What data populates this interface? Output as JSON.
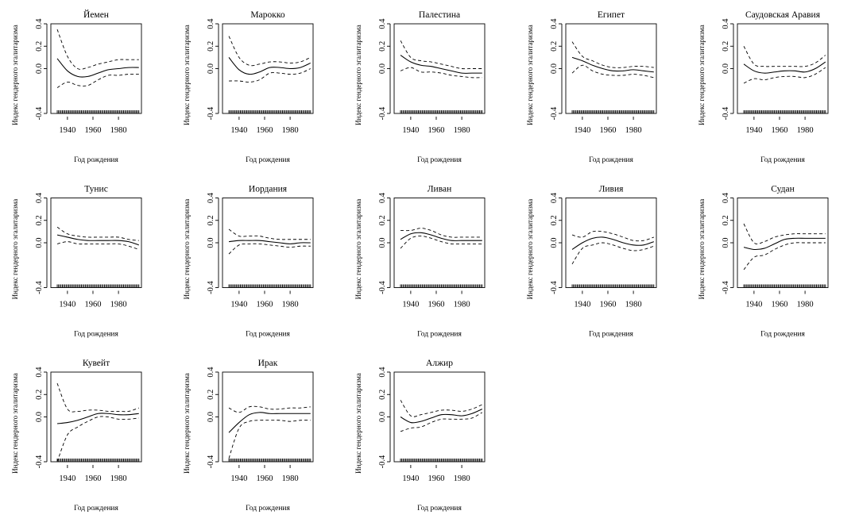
{
  "chart_data": [
    {
      "type": "line",
      "title": "Йемен",
      "xlabel": "Год рождения",
      "ylabel": "Индекс гендерного эгалитаризма",
      "xlim": [
        1927,
        1998
      ],
      "ylim": [
        -0.4,
        0.4
      ],
      "xticks": [
        1940,
        1960,
        1980
      ],
      "yticks": [
        "-0.4",
        "0.0",
        "0.2",
        "0.4"
      ],
      "x": [
        1932,
        1940,
        1948,
        1956,
        1964,
        1972,
        1980,
        1988,
        1996
      ],
      "series": [
        {
          "role": "upper",
          "values": [
            0.35,
            0.11,
            0.0,
            0.01,
            0.04,
            0.06,
            0.08,
            0.08,
            0.08
          ]
        },
        {
          "role": "fit",
          "values": [
            0.09,
            -0.02,
            -0.07,
            -0.07,
            -0.04,
            -0.01,
            0.0,
            0.01,
            0.01
          ]
        },
        {
          "role": "lower",
          "values": [
            -0.17,
            -0.12,
            -0.15,
            -0.15,
            -0.1,
            -0.06,
            -0.06,
            -0.05,
            -0.05
          ]
        }
      ]
    },
    {
      "type": "line",
      "title": "Марокко",
      "xlabel": "Год рождения",
      "ylabel": "Индекс гендерного эгалитаризма",
      "xlim": [
        1927,
        1998
      ],
      "ylim": [
        -0.4,
        0.4
      ],
      "xticks": [
        1940,
        1960,
        1980
      ],
      "yticks": [
        "-0.4",
        "0.0",
        "0.2",
        "0.4"
      ],
      "x": [
        1932,
        1940,
        1948,
        1956,
        1964,
        1972,
        1980,
        1988,
        1996
      ],
      "series": [
        {
          "role": "upper",
          "values": [
            0.29,
            0.1,
            0.03,
            0.04,
            0.06,
            0.06,
            0.05,
            0.06,
            0.1
          ]
        },
        {
          "role": "fit",
          "values": [
            0.1,
            -0.01,
            -0.05,
            -0.03,
            0.01,
            0.01,
            0.0,
            0.01,
            0.05
          ]
        },
        {
          "role": "lower",
          "values": [
            -0.11,
            -0.11,
            -0.12,
            -0.1,
            -0.04,
            -0.04,
            -0.05,
            -0.04,
            0.0
          ]
        }
      ]
    },
    {
      "type": "line",
      "title": "Палестина",
      "xlabel": "Год рождения",
      "ylabel": "Индекс гендерного эгалитаризма",
      "xlim": [
        1927,
        1998
      ],
      "ylim": [
        -0.4,
        0.4
      ],
      "xticks": [
        1940,
        1960,
        1980
      ],
      "yticks": [
        "-0.4",
        "0.0",
        "0.2",
        "0.4"
      ],
      "x": [
        1932,
        1940,
        1948,
        1956,
        1964,
        1972,
        1980,
        1988,
        1996
      ],
      "series": [
        {
          "role": "upper",
          "values": [
            0.25,
            0.1,
            0.07,
            0.06,
            0.04,
            0.02,
            0.0,
            0.0,
            0.0
          ]
        },
        {
          "role": "fit",
          "values": [
            0.12,
            0.06,
            0.03,
            0.02,
            0.0,
            -0.02,
            -0.04,
            -0.04,
            -0.04
          ]
        },
        {
          "role": "lower",
          "values": [
            -0.02,
            0.01,
            -0.03,
            -0.03,
            -0.04,
            -0.06,
            -0.07,
            -0.08,
            -0.08
          ]
        }
      ]
    },
    {
      "type": "line",
      "title": "Египет",
      "xlabel": "Год рождения",
      "ylabel": "Индекс гендерного эгалитаризма",
      "xlim": [
        1927,
        1998
      ],
      "ylim": [
        -0.4,
        0.4
      ],
      "xticks": [
        1940,
        1960,
        1980
      ],
      "yticks": [
        "-0.4",
        "0.0",
        "0.2",
        "0.4"
      ],
      "x": [
        1932,
        1940,
        1948,
        1956,
        1964,
        1972,
        1980,
        1988,
        1996
      ],
      "series": [
        {
          "role": "upper",
          "values": [
            0.24,
            0.11,
            0.07,
            0.03,
            0.01,
            0.01,
            0.02,
            0.02,
            0.01
          ]
        },
        {
          "role": "fit",
          "values": [
            0.1,
            0.07,
            0.03,
            0.0,
            -0.02,
            -0.02,
            -0.01,
            -0.02,
            -0.03
          ]
        },
        {
          "role": "lower",
          "values": [
            -0.04,
            0.03,
            -0.02,
            -0.05,
            -0.06,
            -0.06,
            -0.05,
            -0.06,
            -0.08
          ]
        }
      ]
    },
    {
      "type": "line",
      "title": "Саудовская Аравия",
      "xlabel": "Год рождения",
      "ylabel": "Индекс гендерного эгалитаризма",
      "xlim": [
        1927,
        1998
      ],
      "ylim": [
        -0.4,
        0.4
      ],
      "xticks": [
        1940,
        1960,
        1980
      ],
      "yticks": [
        "-0.4",
        "0.0",
        "0.2",
        "0.4"
      ],
      "x": [
        1932,
        1940,
        1948,
        1956,
        1964,
        1972,
        1980,
        1988,
        1996
      ],
      "series": [
        {
          "role": "upper",
          "values": [
            0.2,
            0.04,
            0.02,
            0.02,
            0.02,
            0.02,
            0.02,
            0.05,
            0.12
          ]
        },
        {
          "role": "fit",
          "values": [
            0.04,
            -0.02,
            -0.04,
            -0.03,
            -0.02,
            -0.02,
            -0.03,
            0.0,
            0.06
          ]
        },
        {
          "role": "lower",
          "values": [
            -0.13,
            -0.09,
            -0.1,
            -0.08,
            -0.07,
            -0.07,
            -0.08,
            -0.05,
            0.01
          ]
        }
      ]
    },
    {
      "type": "line",
      "title": "Тунис",
      "xlabel": "Год рождения",
      "ylabel": "Индекс гендерного эгалитаризма",
      "xlim": [
        1927,
        1998
      ],
      "ylim": [
        -0.4,
        0.4
      ],
      "xticks": [
        1940,
        1960,
        1980
      ],
      "yticks": [
        "-0.4",
        "0.0",
        "0.2",
        "0.4"
      ],
      "x": [
        1932,
        1940,
        1948,
        1956,
        1964,
        1972,
        1980,
        1988,
        1996
      ],
      "series": [
        {
          "role": "upper",
          "values": [
            0.14,
            0.08,
            0.06,
            0.05,
            0.05,
            0.05,
            0.05,
            0.03,
            0.02
          ]
        },
        {
          "role": "fit",
          "values": [
            0.07,
            0.05,
            0.03,
            0.02,
            0.02,
            0.02,
            0.02,
            0.01,
            -0.02
          ]
        },
        {
          "role": "lower",
          "values": [
            -0.01,
            0.01,
            -0.01,
            -0.01,
            -0.01,
            -0.01,
            -0.01,
            -0.03,
            -0.06
          ]
        }
      ]
    },
    {
      "type": "line",
      "title": "Иордания",
      "xlabel": "Год рождения",
      "ylabel": "Индекс гендерного эгалитаризма",
      "xlim": [
        1927,
        1998
      ],
      "ylim": [
        -0.4,
        0.4
      ],
      "xticks": [
        1940,
        1960,
        1980
      ],
      "yticks": [
        "-0.4",
        "0.0",
        "0.2",
        "0.4"
      ],
      "x": [
        1932,
        1940,
        1948,
        1956,
        1964,
        1972,
        1980,
        1988,
        1996
      ],
      "series": [
        {
          "role": "upper",
          "values": [
            0.12,
            0.06,
            0.06,
            0.06,
            0.04,
            0.03,
            0.03,
            0.03,
            0.03
          ]
        },
        {
          "role": "fit",
          "values": [
            0.01,
            0.02,
            0.02,
            0.02,
            0.01,
            0.0,
            -0.01,
            0.0,
            0.0
          ]
        },
        {
          "role": "lower",
          "values": [
            -0.1,
            -0.02,
            -0.01,
            -0.01,
            -0.02,
            -0.03,
            -0.04,
            -0.03,
            -0.03
          ]
        }
      ]
    },
    {
      "type": "line",
      "title": "Ливан",
      "xlabel": "Год рождения",
      "ylabel": "Индекс гендерного эгалитаризма",
      "xlim": [
        1927,
        1998
      ],
      "ylim": [
        -0.4,
        0.4
      ],
      "xticks": [
        1940,
        1960,
        1980
      ],
      "yticks": [
        "-0.4",
        "0.0",
        "0.2",
        "0.4"
      ],
      "x": [
        1932,
        1940,
        1948,
        1956,
        1964,
        1972,
        1980,
        1988,
        1996
      ],
      "series": [
        {
          "role": "upper",
          "values": [
            0.11,
            0.11,
            0.13,
            0.11,
            0.07,
            0.05,
            0.05,
            0.05,
            0.05
          ]
        },
        {
          "role": "fit",
          "values": [
            0.03,
            0.08,
            0.09,
            0.07,
            0.04,
            0.02,
            0.02,
            0.02,
            0.02
          ]
        },
        {
          "role": "lower",
          "values": [
            -0.05,
            0.04,
            0.06,
            0.04,
            0.01,
            -0.01,
            -0.01,
            -0.01,
            -0.01
          ]
        }
      ]
    },
    {
      "type": "line",
      "title": "Ливия",
      "xlabel": "Год рождения",
      "ylabel": "Индекс гендерного эгалитаризма",
      "xlim": [
        1927,
        1998
      ],
      "ylim": [
        -0.4,
        0.4
      ],
      "xticks": [
        1940,
        1960,
        1980
      ],
      "yticks": [
        "-0.4",
        "0.0",
        "0.2",
        "0.4"
      ],
      "x": [
        1932,
        1940,
        1948,
        1956,
        1964,
        1972,
        1980,
        1988,
        1996
      ],
      "series": [
        {
          "role": "upper",
          "values": [
            0.07,
            0.05,
            0.1,
            0.1,
            0.08,
            0.05,
            0.02,
            0.02,
            0.05
          ]
        },
        {
          "role": "fit",
          "values": [
            -0.06,
            0.0,
            0.04,
            0.05,
            0.03,
            0.0,
            -0.02,
            -0.02,
            0.01
          ]
        },
        {
          "role": "lower",
          "values": [
            -0.19,
            -0.05,
            -0.02,
            0.0,
            -0.02,
            -0.05,
            -0.07,
            -0.06,
            -0.03
          ]
        }
      ]
    },
    {
      "type": "line",
      "title": "Судан",
      "xlabel": "Год рождения",
      "ylabel": "Индекс гендерного эгалитаризма",
      "xlim": [
        1927,
        1998
      ],
      "ylim": [
        -0.4,
        0.4
      ],
      "xticks": [
        1940,
        1960,
        1980
      ],
      "yticks": [
        "-0.4",
        "0.0",
        "0.2",
        "0.4"
      ],
      "x": [
        1932,
        1940,
        1948,
        1956,
        1964,
        1972,
        1980,
        1988,
        1996
      ],
      "series": [
        {
          "role": "upper",
          "values": [
            0.17,
            0.0,
            0.01,
            0.05,
            0.07,
            0.08,
            0.08,
            0.08,
            0.08
          ]
        },
        {
          "role": "fit",
          "values": [
            -0.04,
            -0.06,
            -0.05,
            -0.01,
            0.03,
            0.04,
            0.04,
            0.04,
            0.04
          ]
        },
        {
          "role": "lower",
          "values": [
            -0.24,
            -0.13,
            -0.11,
            -0.06,
            -0.02,
            0.0,
            0.0,
            0.0,
            0.0
          ]
        }
      ]
    },
    {
      "type": "line",
      "title": "Кувейт",
      "xlabel": "Год рождения",
      "ylabel": "Индекс гендерного эгалитаризма",
      "xlim": [
        1927,
        1998
      ],
      "ylim": [
        -0.4,
        0.4
      ],
      "xticks": [
        1940,
        1960,
        1980
      ],
      "yticks": [
        "-0.4",
        "0.0",
        "0.2",
        "0.4"
      ],
      "x": [
        1932,
        1940,
        1948,
        1956,
        1964,
        1972,
        1980,
        1988,
        1996
      ],
      "series": [
        {
          "role": "upper",
          "values": [
            0.3,
            0.07,
            0.05,
            0.06,
            0.06,
            0.05,
            0.05,
            0.05,
            0.08
          ]
        },
        {
          "role": "fit",
          "values": [
            -0.06,
            -0.05,
            -0.03,
            0.0,
            0.03,
            0.03,
            0.02,
            0.02,
            0.03
          ]
        },
        {
          "role": "lower",
          "values": [
            -0.4,
            -0.16,
            -0.09,
            -0.04,
            0.0,
            0.0,
            -0.02,
            -0.02,
            -0.01
          ]
        }
      ]
    },
    {
      "type": "line",
      "title": "Ирак",
      "xlabel": "Год рождения",
      "ylabel": "Индекс гендерного эгалитаризма",
      "xlim": [
        1927,
        1998
      ],
      "ylim": [
        -0.4,
        0.4
      ],
      "xticks": [
        1940,
        1960,
        1980
      ],
      "yticks": [
        "-0.4",
        "0.0",
        "0.2",
        "0.4"
      ],
      "x": [
        1932,
        1940,
        1948,
        1956,
        1964,
        1972,
        1980,
        1988,
        1996
      ],
      "series": [
        {
          "role": "upper",
          "values": [
            0.08,
            0.04,
            0.09,
            0.09,
            0.07,
            0.07,
            0.08,
            0.08,
            0.09
          ]
        },
        {
          "role": "fit",
          "values": [
            -0.14,
            -0.05,
            0.02,
            0.04,
            0.03,
            0.03,
            0.03,
            0.03,
            0.03
          ]
        },
        {
          "role": "lower",
          "values": [
            -0.37,
            -0.1,
            -0.04,
            -0.03,
            -0.03,
            -0.03,
            -0.04,
            -0.03,
            -0.03
          ]
        }
      ]
    },
    {
      "type": "line",
      "title": "Алжир",
      "xlabel": "Год рождения",
      "ylabel": "Индекс гендерного эгалитаризма",
      "xlim": [
        1927,
        1998
      ],
      "ylim": [
        -0.4,
        0.4
      ],
      "xticks": [
        1940,
        1960,
        1980
      ],
      "yticks": [
        "-0.4",
        "0.0",
        "0.2",
        "0.4"
      ],
      "x": [
        1932,
        1940,
        1948,
        1956,
        1964,
        1972,
        1980,
        1988,
        1996
      ],
      "series": [
        {
          "role": "upper",
          "values": [
            0.15,
            0.01,
            0.02,
            0.04,
            0.06,
            0.06,
            0.05,
            0.07,
            0.11
          ]
        },
        {
          "role": "fit",
          "values": [
            0.0,
            -0.05,
            -0.04,
            -0.01,
            0.02,
            0.02,
            0.01,
            0.03,
            0.07
          ]
        },
        {
          "role": "lower",
          "values": [
            -0.13,
            -0.1,
            -0.09,
            -0.05,
            -0.02,
            -0.02,
            -0.02,
            -0.01,
            0.04
          ]
        }
      ]
    }
  ]
}
